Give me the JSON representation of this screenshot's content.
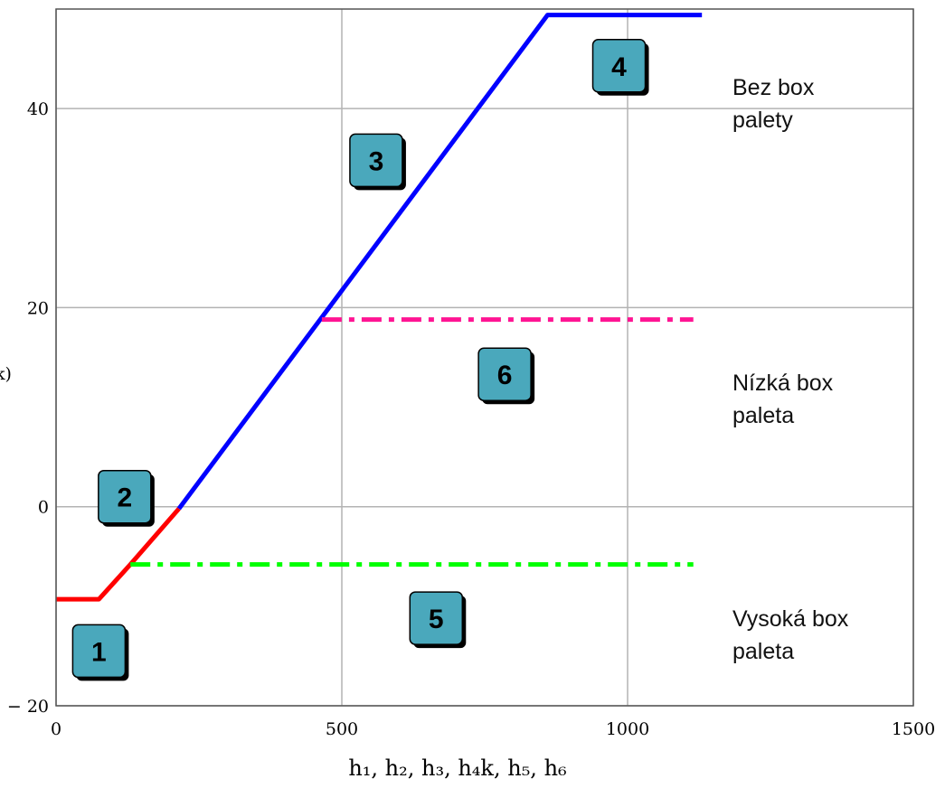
{
  "chart_data": {
    "type": "line",
    "xlabel": "h₁, h₂, h₃, h₄k, h₅, h₆",
    "ylabel": "",
    "xlim": [
      0,
      1500
    ],
    "ylim": [
      -20,
      50
    ],
    "x_ticks": [
      "0",
      "500",
      "1000",
      "1500"
    ],
    "y_ticks": [
      "− 20",
      "0",
      "20",
      "40"
    ],
    "grid": true,
    "series": [
      {
        "color": "#ff0000",
        "style": "solid",
        "points": [
          [
            0,
            -9.3
          ],
          [
            75,
            -9.3
          ],
          [
            130,
            -5.8
          ],
          [
            215,
            -0.2
          ]
        ]
      },
      {
        "color": "#0000ff",
        "style": "solid",
        "points": [
          [
            215,
            -0.2
          ],
          [
            860,
            49.4
          ],
          [
            1130,
            49.4
          ]
        ]
      },
      {
        "color": "#00ff00",
        "style": "dash-dot",
        "points": [
          [
            130,
            -5.8
          ],
          [
            1115,
            -5.8
          ]
        ]
      },
      {
        "color": "#ff1493",
        "style": "dash-dot",
        "points": [
          [
            465,
            18.8
          ],
          [
            1115,
            18.8
          ]
        ]
      }
    ],
    "annotations": [
      {
        "label": "1",
        "x": 75,
        "y": -14.5
      },
      {
        "label": "2",
        "x": 120,
        "y": 1.0
      },
      {
        "label": "3",
        "x": 560,
        "y": 34.8
      },
      {
        "label": "4",
        "x": 985,
        "y": 44.3
      },
      {
        "label": "5",
        "x": 665,
        "y": -11.2
      },
      {
        "label": "6",
        "x": 785,
        "y": 13.3
      }
    ],
    "region_labels": [
      {
        "lines": [
          "Bez box",
          "palety"
        ]
      },
      {
        "lines": [
          "Nízká box",
          "paleta"
        ]
      },
      {
        "lines": [
          "Vysoká box",
          "paleta"
        ]
      }
    ],
    "left_label_fragment": "k)"
  },
  "colors": {
    "box_fill": "#4aa8bc",
    "box_stroke": "#000000",
    "grid": "#b3b3b3",
    "axis": "#555555"
  }
}
